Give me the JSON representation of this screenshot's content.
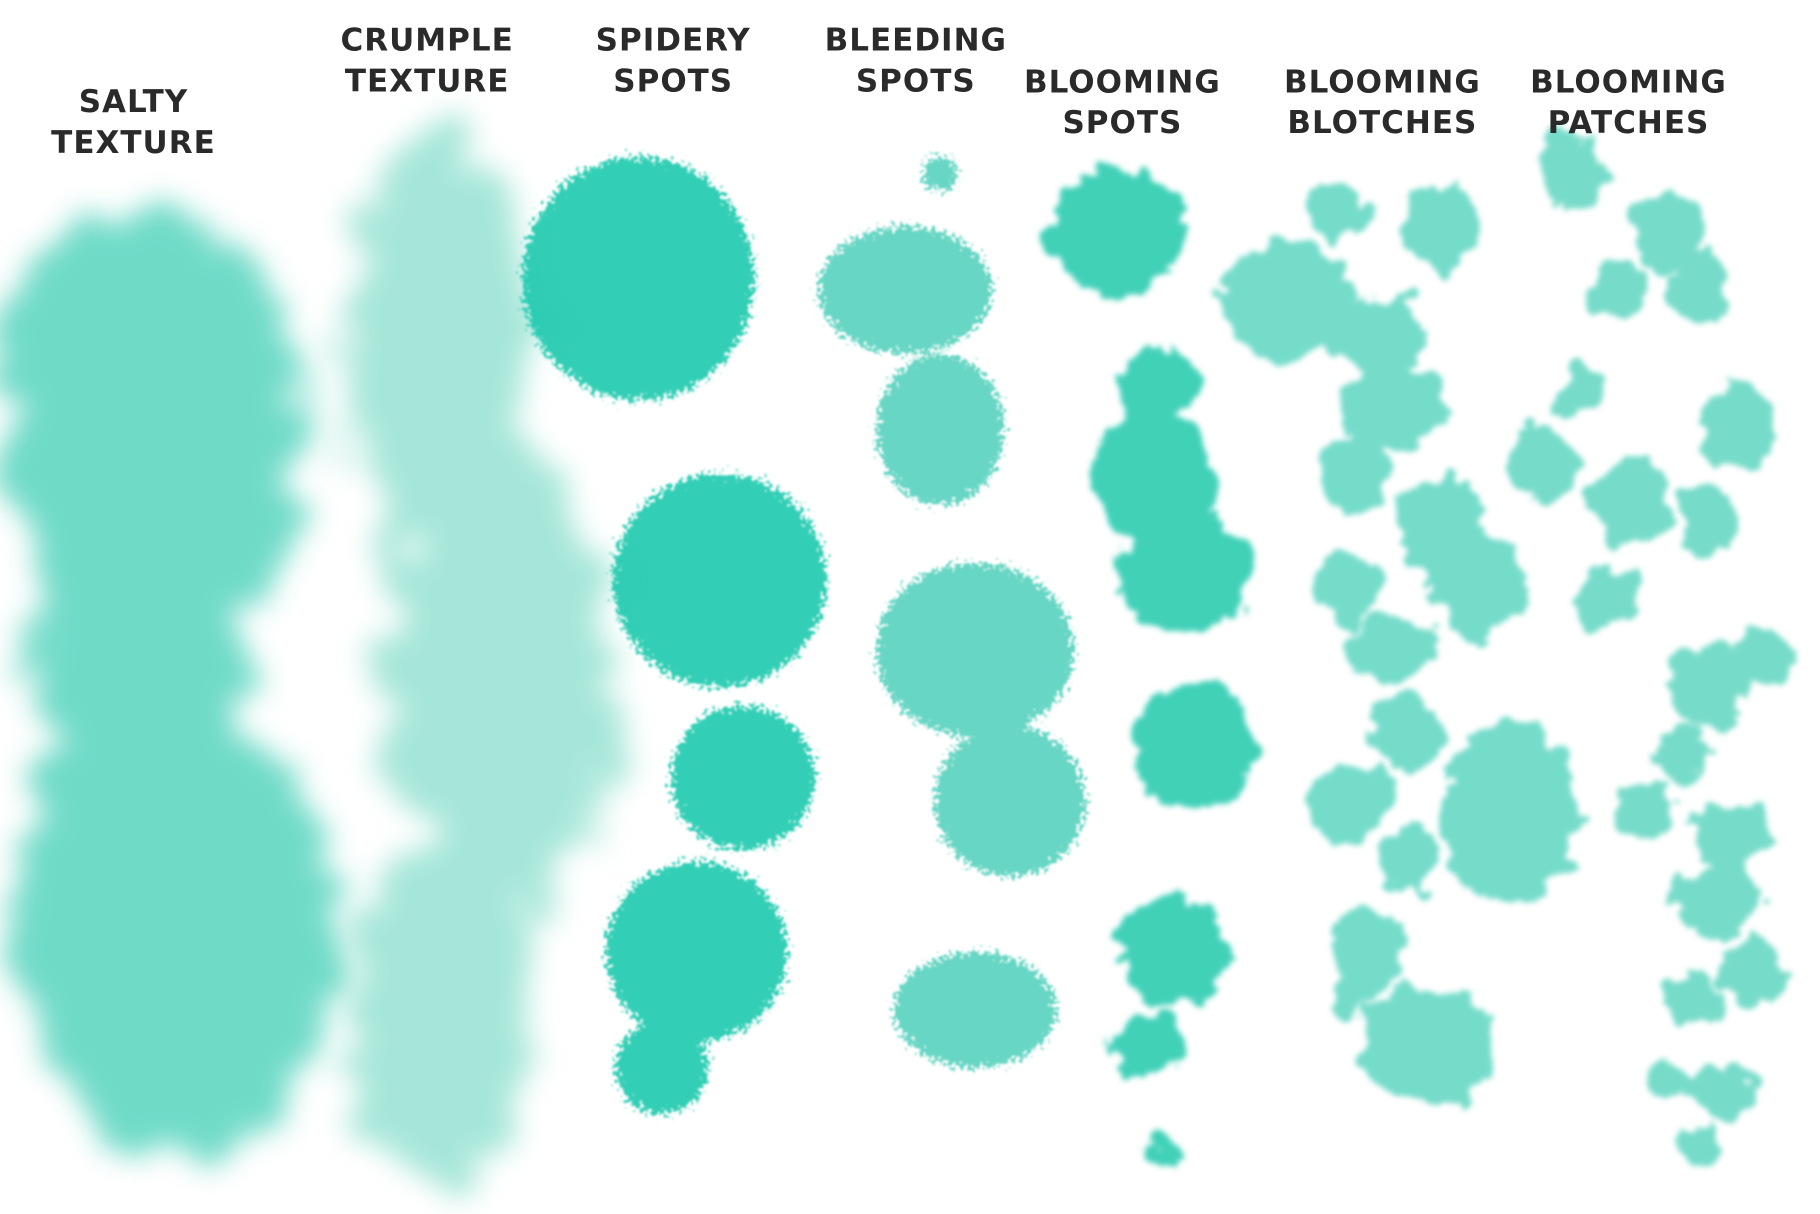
{
  "labels": [
    {
      "line1": "SALTY",
      "line2": "TEXTURE"
    },
    {
      "line1": "CRUMPLE",
      "line2": "TEXTURE"
    },
    {
      "line1": "SPIDERY",
      "line2": "SPOTS"
    },
    {
      "line1": "BLEEDING",
      "line2": "SPOTS"
    },
    {
      "line1": "BLOOMING",
      "line2": "SPOTS"
    },
    {
      "line1": "BLOOMING",
      "line2": "BLOTCHES"
    },
    {
      "line1": "BLOOMING",
      "line2": "PATCHES"
    }
  ]
}
